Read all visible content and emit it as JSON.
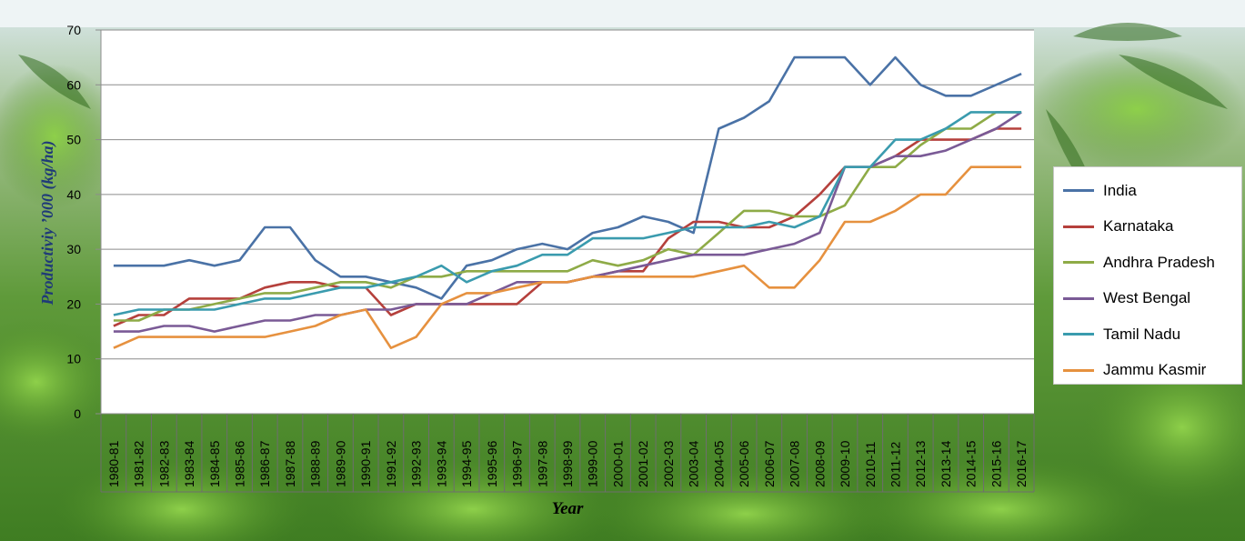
{
  "chart_data": {
    "type": "line",
    "ylabel": "Productiviy ’000 (kg/ha)",
    "xlabel": "Year",
    "ylim": [
      0,
      70
    ],
    "yticks": [
      0,
      10,
      20,
      30,
      40,
      50,
      60,
      70
    ],
    "grid": "horizontal",
    "legend_position": "right",
    "categories": [
      "1980-81",
      "1981-82",
      "1982-83",
      "1983-84",
      "1984-85",
      "1985-86",
      "1986-87",
      "1987-88",
      "1988-89",
      "1989-90",
      "1990-91",
      "1991-92",
      "1992-93",
      "1993-94",
      "1994-95",
      "1995-96",
      "1996-97",
      "1997-98",
      "1998-99",
      "1999-00",
      "2000-01",
      "2001-02",
      "2002-03",
      "2003-04",
      "2004-05",
      "2005-06",
      "2006-07",
      "2007-08",
      "2008-09",
      "2009-10",
      "2010-11",
      "2011-12",
      "2012-13",
      "2013-14",
      "2014-15",
      "2015-16",
      "2016-17"
    ],
    "series": [
      {
        "name": "India",
        "color": "#4a72a6",
        "values": [
          27,
          27,
          27,
          28,
          27,
          28,
          34,
          34,
          28,
          25,
          25,
          24,
          23,
          21,
          27,
          28,
          30,
          31,
          30,
          33,
          34,
          36,
          35,
          33,
          52,
          54,
          57,
          65,
          65,
          65,
          60,
          65,
          60,
          58,
          58,
          60,
          62
        ]
      },
      {
        "name": "Karnataka",
        "color": "#b5403c",
        "values": [
          16,
          18,
          18,
          21,
          21,
          21,
          23,
          24,
          24,
          23,
          23,
          18,
          20,
          20,
          20,
          20,
          20,
          24,
          24,
          25,
          26,
          26,
          32,
          35,
          35,
          34,
          34,
          36,
          40,
          45,
          45,
          47,
          50,
          50,
          50,
          52,
          52
        ]
      },
      {
        "name": "Andhra Pradesh",
        "color": "#8eab47",
        "values": [
          17,
          17,
          19,
          19,
          20,
          21,
          22,
          22,
          23,
          24,
          24,
          23,
          25,
          25,
          26,
          26,
          26,
          26,
          26,
          28,
          27,
          28,
          30,
          29,
          33,
          37,
          37,
          36,
          36,
          38,
          45,
          45,
          49,
          52,
          52,
          55,
          55
        ]
      },
      {
        "name": "West Bengal",
        "color": "#7a5a96",
        "values": [
          15,
          15,
          16,
          16,
          15,
          16,
          17,
          17,
          18,
          18,
          19,
          19,
          20,
          20,
          20,
          22,
          24,
          24,
          24,
          25,
          26,
          27,
          28,
          29,
          29,
          29,
          30,
          31,
          33,
          45,
          45,
          47,
          47,
          48,
          50,
          52,
          55
        ]
      },
      {
        "name": "Tamil Nadu",
        "color": "#3a9bae",
        "values": [
          18,
          19,
          19,
          19,
          19,
          20,
          21,
          21,
          22,
          23,
          23,
          24,
          25,
          27,
          24,
          26,
          27,
          29,
          29,
          32,
          32,
          32,
          33,
          34,
          34,
          34,
          35,
          34,
          36,
          45,
          45,
          50,
          50,
          52,
          55,
          55,
          55
        ]
      },
      {
        "name": "Jammu Kasmir",
        "color": "#e6913f",
        "values": [
          12,
          14,
          14,
          14,
          14,
          14,
          14,
          15,
          16,
          18,
          19,
          12,
          14,
          20,
          22,
          22,
          23,
          24,
          24,
          25,
          25,
          25,
          25,
          25,
          26,
          27,
          23,
          23,
          28,
          35,
          35,
          37,
          40,
          40,
          45,
          45,
          45
        ]
      }
    ]
  }
}
